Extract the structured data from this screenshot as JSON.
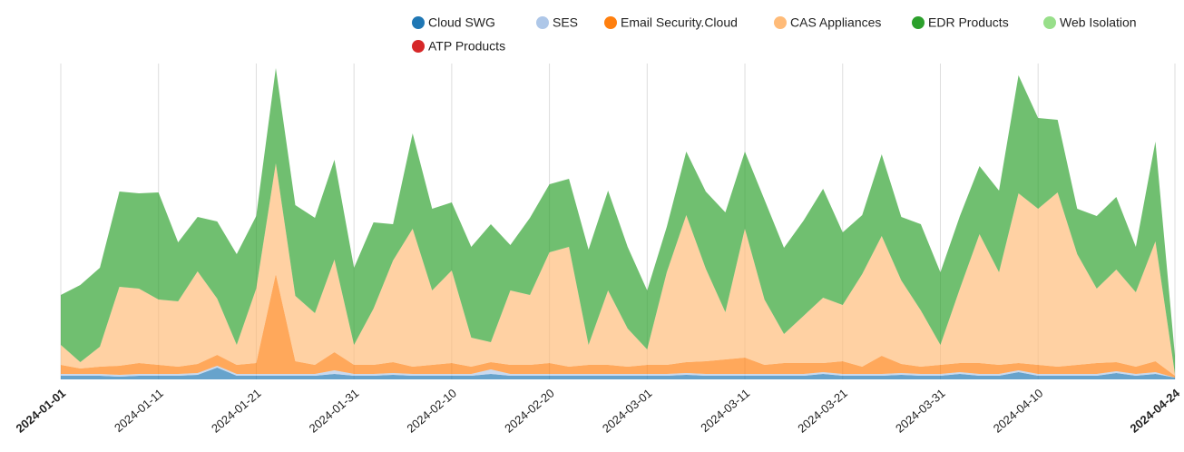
{
  "chart_data": {
    "type": "area",
    "stacked": true,
    "x": [
      "2024-01-01",
      "2024-01-03",
      "2024-01-05",
      "2024-01-07",
      "2024-01-09",
      "2024-01-11",
      "2024-01-13",
      "2024-01-15",
      "2024-01-17",
      "2024-01-19",
      "2024-01-21",
      "2024-01-23",
      "2024-01-25",
      "2024-01-27",
      "2024-01-29",
      "2024-01-31",
      "2024-02-02",
      "2024-02-04",
      "2024-02-06",
      "2024-02-08",
      "2024-02-10",
      "2024-02-12",
      "2024-02-14",
      "2024-02-16",
      "2024-02-18",
      "2024-02-20",
      "2024-02-22",
      "2024-02-24",
      "2024-02-26",
      "2024-02-28",
      "2024-03-01",
      "2024-03-03",
      "2024-03-05",
      "2024-03-07",
      "2024-03-09",
      "2024-03-11",
      "2024-03-13",
      "2024-03-15",
      "2024-03-17",
      "2024-03-19",
      "2024-03-21",
      "2024-03-23",
      "2024-03-25",
      "2024-03-27",
      "2024-03-29",
      "2024-03-31",
      "2024-04-02",
      "2024-04-04",
      "2024-04-06",
      "2024-04-08",
      "2024-04-10",
      "2024-04-12",
      "2024-04-14",
      "2024-04-16",
      "2024-04-18",
      "2024-04-20",
      "2024-04-22",
      "2024-04-24"
    ],
    "xticks": [
      "2024-01-01",
      "2024-01-11",
      "2024-01-21",
      "2024-01-31",
      "2024-02-10",
      "2024-02-20",
      "2024-03-01",
      "2024-03-11",
      "2024-03-21",
      "2024-03-31",
      "2024-04-10",
      "2024-04-24"
    ],
    "grid": true,
    "legend": "top",
    "series": [
      {
        "name": "Cloud SWG",
        "color": "#1f77b4",
        "values": [
          4,
          4,
          4,
          3,
          4,
          4,
          4,
          5,
          13,
          4,
          4,
          4,
          4,
          4,
          6,
          4,
          4,
          5,
          4,
          4,
          4,
          4,
          6,
          4,
          4,
          4,
          4,
          4,
          4,
          4,
          4,
          4,
          5,
          4,
          4,
          4,
          4,
          4,
          4,
          6,
          4,
          4,
          4,
          5,
          4,
          4,
          6,
          4,
          4,
          8,
          4,
          4,
          4,
          4,
          7,
          4,
          6,
          2
        ]
      },
      {
        "name": "SES",
        "color": "#aec7e8",
        "values": [
          2,
          2,
          2,
          2,
          2,
          2,
          2,
          2,
          2,
          2,
          2,
          2,
          2,
          2,
          4,
          2,
          2,
          2,
          2,
          2,
          2,
          2,
          5,
          2,
          2,
          2,
          2,
          2,
          2,
          2,
          2,
          2,
          2,
          2,
          2,
          2,
          2,
          2,
          2,
          2,
          2,
          2,
          2,
          2,
          2,
          2,
          2,
          2,
          2,
          2,
          2,
          2,
          2,
          2,
          2,
          2,
          2,
          0
        ]
      },
      {
        "name": "Email Security.Cloud",
        "color": "#ff7f0e",
        "values": [
          10,
          6,
          8,
          10,
          12,
          10,
          8,
          10,
          12,
          10,
          12,
          110,
          14,
          10,
          20,
          10,
          10,
          12,
          8,
          10,
          12,
          8,
          8,
          10,
          10,
          12,
          8,
          10,
          10,
          8,
          10,
          10,
          12,
          14,
          16,
          18,
          10,
          12,
          12,
          10,
          14,
          8,
          20,
          10,
          8,
          10,
          10,
          12,
          10,
          8,
          10,
          8,
          10,
          12,
          10,
          8,
          12,
          2
        ]
      },
      {
        "name": "CAS Appliances",
        "color": "#ffbb78",
        "values": [
          22,
          7,
          22,
          87,
          82,
          72,
          72,
          102,
          62,
          22,
          82,
          122,
          72,
          57,
          102,
          22,
          62,
          112,
          152,
          82,
          102,
          32,
          22,
          82,
          77,
          122,
          132,
          22,
          82,
          42,
          17,
          102,
          162,
          102,
          52,
          142,
          72,
          32,
          52,
          72,
          62,
          102,
          132,
          92,
          62,
          22,
          82,
          142,
          102,
          187,
          172,
          192,
          122,
          82,
          102,
          82,
          132,
          2
        ]
      },
      {
        "name": "EDR Products",
        "color": "#2ca02c",
        "values": [
          55,
          85,
          87,
          105,
          105,
          118,
          65,
          60,
          85,
          100,
          80,
          105,
          100,
          105,
          110,
          85,
          95,
          40,
          105,
          90,
          75,
          100,
          130,
          50,
          85,
          75,
          75,
          105,
          110,
          90,
          65,
          50,
          70,
          85,
          110,
          85,
          110,
          95,
          105,
          120,
          80,
          65,
          90,
          70,
          95,
          80,
          80,
          75,
          90,
          130,
          100,
          80,
          50,
          80,
          80,
          50,
          110,
          20
        ]
      },
      {
        "name": "Web Isolation",
        "color": "#98df8a",
        "values": [
          0,
          0,
          0,
          0,
          0,
          0,
          0,
          0,
          0,
          0,
          0,
          0,
          0,
          0,
          0,
          0,
          0,
          0,
          0,
          0,
          0,
          0,
          0,
          0,
          0,
          0,
          0,
          0,
          0,
          0,
          0,
          0,
          0,
          0,
          0,
          0,
          0,
          0,
          0,
          0,
          0,
          0,
          0,
          0,
          0,
          0,
          0,
          0,
          0,
          0,
          0,
          0,
          0,
          0,
          0,
          0,
          0,
          0
        ]
      },
      {
        "name": "ATP Products",
        "color": "#d62728",
        "values": [
          0,
          0,
          0,
          0,
          0,
          0,
          0,
          0,
          0,
          0,
          0,
          0,
          0,
          0,
          0,
          0,
          0,
          0,
          0,
          0,
          0,
          0,
          0,
          0,
          0,
          0,
          0,
          0,
          0,
          0,
          0,
          0,
          0,
          0,
          0,
          0,
          0,
          0,
          0,
          0,
          0,
          0,
          0,
          0,
          0,
          0,
          0,
          0,
          0,
          0,
          0,
          0,
          0,
          0,
          0,
          0,
          0,
          0
        ]
      }
    ]
  }
}
